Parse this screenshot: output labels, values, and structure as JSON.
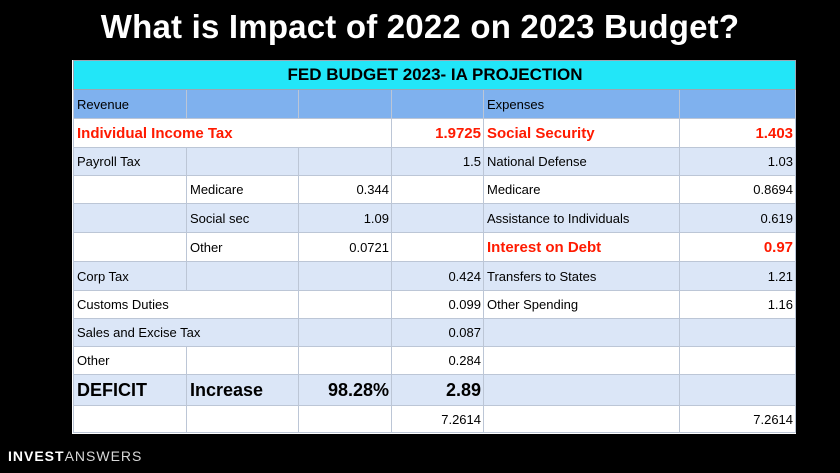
{
  "title": "What is Impact of 2022 on 2023 Budget?",
  "table": {
    "banner": "FED BUDGET 2023- IA PROJECTION",
    "header": {
      "revenue": "Revenue",
      "expenses": "Expenses"
    },
    "rows": {
      "r1": {
        "rev_label": "Individual Income Tax",
        "rev_total": "1.9725",
        "exp_label": "Social Security",
        "exp_value": "1.403"
      },
      "r2": {
        "rev_label": "Payroll Tax",
        "rev_total": "1.5",
        "exp_label": "National Defense",
        "exp_value": "1.03"
      },
      "r3": {
        "sub_label": "Medicare",
        "sub_value": "0.344",
        "exp_label": "Medicare",
        "exp_value": "0.8694"
      },
      "r4": {
        "sub_label": "Social sec",
        "sub_value": "1.09",
        "exp_label": "Assistance to Individuals",
        "exp_value": "0.619"
      },
      "r5": {
        "sub_label": "Other",
        "sub_value": "0.0721",
        "exp_label": "Interest on Debt",
        "exp_value": "0.97"
      },
      "r6": {
        "rev_label": "Corp Tax",
        "rev_total": "0.424",
        "exp_label": "Transfers to States",
        "exp_value": "1.21"
      },
      "r7": {
        "rev_label": "Customs Duties",
        "rev_total": "0.099",
        "exp_label": "Other Spending",
        "exp_value": "1.16"
      },
      "r8": {
        "rev_label": "Sales and Excise Tax",
        "rev_total": "0.087"
      },
      "r9": {
        "rev_label": "Other",
        "rev_total": "0.284"
      },
      "deficit": {
        "label": "DEFICIT",
        "increase_label": "Increase",
        "increase_pct": "98.28%",
        "amount": "2.89"
      },
      "totals": {
        "revenue_total": "7.2614",
        "expenses_total": "7.2614"
      }
    }
  },
  "brand": {
    "bold": "INVEST",
    "light": "ANSWERS"
  },
  "colors": {
    "banner": "#22e6f8",
    "header": "#7fb1ee",
    "shade": "#dbe6f7",
    "highlight": "#ff1a00"
  }
}
